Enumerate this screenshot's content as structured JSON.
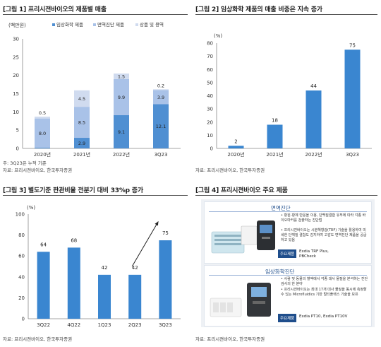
{
  "panel1": {
    "title": "[그림 1] 프리시젼바이오의 제품별 매출",
    "unit": "(백만원)",
    "legend": [
      "임상화학 제품",
      "면역진단 제품",
      "상품 및 용역"
    ],
    "note": "주: 3Q23은 누적 기준",
    "source": "자료: 프리시젼바이오, 한국투자증권"
  },
  "panel2": {
    "title": "[그림 2] 임상화학 제품의 매출 비중은 지속 증가",
    "unit": "(%)",
    "source": "자료: 프리시젼바이오, 한국투자증권"
  },
  "panel3": {
    "title": "[그림 3] 별도기준 판관비율 전분기 대비 33%p 증가",
    "unit": "(%)",
    "source": "자료: 프리시젼바이오, 한국투자증권"
  },
  "panel4": {
    "title": "[그림 4] 프리시젼바이오 주요 제품",
    "sec1_title": "면역진단",
    "sec1_bullets": [
      "• 항원-항체 반응을 이용, 단백질결합 유무에 따라 각종 바이오마커를 검출하는 진단법",
      "• 프리시젼바이오는 시분해형광(TRF) 기술을 활용하여 미세한 단백질 결합도 감지하여 고감도 면역진단 제품을 공급하고 있음"
    ],
    "sec1_btn": "주요제품",
    "sec1_products": [
      "Exdia TRF Plus,",
      "PBCheck"
    ],
    "sec2_title": "임상화학진단",
    "sec2_bullets": [
      "• 사람 및 동물의 혈액에서 각종 대사 물질을 분석하는 진단검사의 한 분야",
      "• 프리시젼바이오는 최대 17개 대사 물질을 동시에 측정할 수 있는 Microfluidics 기반 멀티플렉스 기술을 보유"
    ],
    "sec2_btn": "주요제품",
    "sec2_products": [
      "Exdia PT10, Exdia PT10V"
    ],
    "source": "자료: 프리시젼바이오, 한국투자증권"
  },
  "colors": {
    "clinical": "#4f8fd2",
    "immuno": "#a9c2e8",
    "goods": "#d0dbef",
    "bar": "#3a86d0",
    "axis": "#888888",
    "grid": "#d9d9d9"
  },
  "chart_data": [
    {
      "type": "bar",
      "stacked": true,
      "categories": [
        "2020년",
        "2021년",
        "2022년",
        "3Q23"
      ],
      "series": [
        {
          "name": "임상화학 제품",
          "values": [
            0.2,
            2.9,
            9.1,
            12.1
          ]
        },
        {
          "name": "면역진단 제품",
          "values": [
            8.0,
            8.5,
            9.9,
            3.9
          ]
        },
        {
          "name": "상품 및 용역",
          "values": [
            0.5,
            4.5,
            1.5,
            0.2
          ]
        }
      ],
      "ylim": [
        0,
        30
      ],
      "yticks": [
        0,
        5,
        10,
        15,
        20,
        25,
        30
      ],
      "legend_position": "top",
      "grid": false
    },
    {
      "type": "bar",
      "categories": [
        "2020년",
        "2021년",
        "2022년",
        "3Q23"
      ],
      "values": [
        2,
        18,
        44,
        75
      ],
      "ylim": [
        0,
        80
      ],
      "yticks": [
        0,
        10,
        20,
        30,
        40,
        50,
        60,
        70,
        80
      ],
      "grid": false
    },
    {
      "type": "bar",
      "categories": [
        "3Q22",
        "4Q22",
        "1Q23",
        "2Q23",
        "3Q23"
      ],
      "values": [
        64,
        68,
        42,
        42,
        75
      ],
      "ylim": [
        0,
        100
      ],
      "yticks": [
        0,
        20,
        40,
        60,
        80,
        100
      ],
      "grid": false,
      "annotation": "arrow from 2Q23 rising toward 3Q23"
    }
  ]
}
